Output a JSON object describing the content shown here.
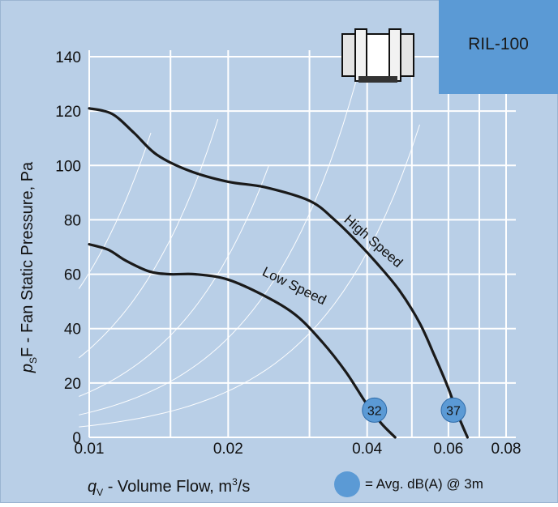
{
  "chart_data": {
    "type": "line",
    "title": "",
    "model": "RIL-100",
    "ylabel_prefix": "p",
    "ylabel_sub": "S",
    "ylabel_rest": "F - Fan Static Pressure, Pa",
    "xlabel_prefix": "q",
    "xlabel_sub": "V",
    "xlabel_rest": " - Volume Flow, m",
    "xlabel_sup": "3",
    "xlabel_end": "/s",
    "x_scale": "log",
    "xlim": [
      0.01,
      0.08
    ],
    "ylim": [
      0,
      140
    ],
    "x_ticks": [
      "0.01",
      "0.02",
      "0.04",
      "0.06",
      "0.08"
    ],
    "y_ticks": [
      "0",
      "20",
      "40",
      "60",
      "80",
      "100",
      "120",
      "140"
    ],
    "grid": true,
    "series": [
      {
        "name": "High Speed",
        "x": [
          0.01,
          0.0112,
          0.0125,
          0.014,
          0.0165,
          0.02,
          0.024,
          0.03,
          0.034,
          0.038,
          0.042,
          0.047,
          0.052,
          0.056,
          0.06,
          0.063,
          0.066
        ],
        "y": [
          121,
          119,
          112,
          104,
          98,
          94,
          92,
          87,
          80,
          72,
          64,
          54,
          42,
          30,
          18,
          8,
          0
        ]
      },
      {
        "name": "Low Speed",
        "x": [
          0.01,
          0.011,
          0.012,
          0.0135,
          0.015,
          0.017,
          0.02,
          0.024,
          0.028,
          0.032,
          0.036,
          0.04,
          0.043,
          0.046
        ],
        "y": [
          71,
          69,
          65,
          61,
          60,
          60,
          58,
          52,
          45,
          35,
          24,
          12,
          5,
          0
        ]
      }
    ],
    "noise_markers": [
      {
        "value": "32",
        "x": 0.0415,
        "y": 10
      },
      {
        "value": "37",
        "x": 0.0615,
        "y": 10
      }
    ],
    "legend": "= Avg. dB(A) @ 3m",
    "colors": {
      "plot_bg": "#b9cfe7",
      "badge": "#5b9ad5",
      "marker": "#5b9ad5",
      "curve": "#1a1a1a",
      "grid": "#ffffff"
    }
  }
}
